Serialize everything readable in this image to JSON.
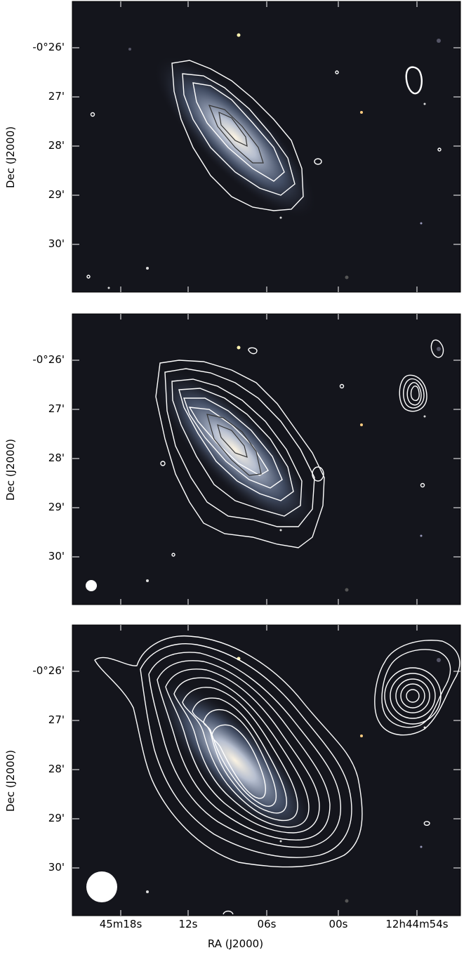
{
  "panels": [
    {
      "id": "top",
      "ylabel": "Dec (J2000)",
      "yticks": [
        "-0°26'",
        "27'",
        "28'",
        "29'",
        "30'"
      ],
      "beam": "small"
    },
    {
      "id": "middle",
      "ylabel": "Dec (J2000)",
      "yticks": [
        "-0°26'",
        "27'",
        "28'",
        "29'",
        "30'"
      ],
      "beam": "medium"
    },
    {
      "id": "bottom",
      "ylabel": "Dec (J2000)",
      "yticks": [
        "-0°26'",
        "27'",
        "28'",
        "29'",
        "30'"
      ],
      "beam": "large"
    }
  ],
  "xaxis": {
    "label": "RA (J2000)",
    "ticks": [
      "45m18s",
      "12s",
      "06s",
      "00s",
      "12h44m54s"
    ]
  },
  "colors": {
    "sky": "#14151c",
    "contour_white": "#ffffff",
    "contour_dark": "#2a2a2a",
    "galaxy_core": "#f4ead8",
    "galaxy_disk": "#8fa3c7"
  }
}
